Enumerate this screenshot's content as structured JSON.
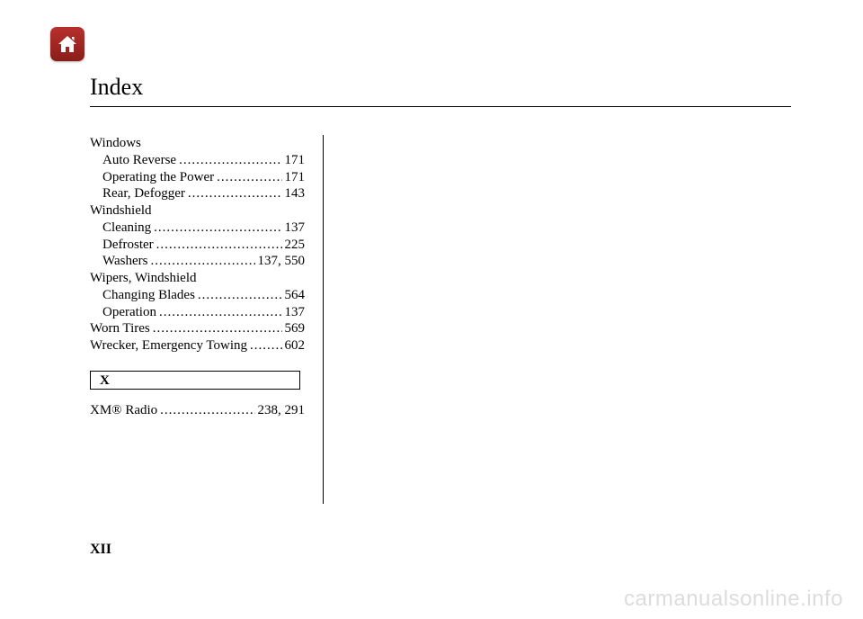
{
  "title": "Index",
  "page_number": "XII",
  "watermark": "carmanualsonline.info",
  "colors": {
    "text": "#000000",
    "rule": "#000000",
    "watermark": "#dcdcdc",
    "home_icon_bg_top": "#b8302c",
    "home_icon_bg_bottom": "#8a1e1a",
    "home_icon_glyph": "#ffffff"
  },
  "entries": [
    {
      "label": "Windows",
      "page": "",
      "indent": 0,
      "dots": false
    },
    {
      "label": "Auto Reverse",
      "page": "171",
      "indent": 1,
      "dots": true
    },
    {
      "label": "Operating the Power",
      "page": "171",
      "indent": 1,
      "dots": true
    },
    {
      "label": "Rear, Defogger",
      "page": "143",
      "indent": 1,
      "dots": true
    },
    {
      "label": "Windshield",
      "page": "",
      "indent": 0,
      "dots": false
    },
    {
      "label": "Cleaning",
      "page": "137",
      "indent": 1,
      "dots": true
    },
    {
      "label": "Defroster",
      "page": "225",
      "indent": 1,
      "dots": true
    },
    {
      "label": "Washers",
      "page": "137, 550",
      "indent": 1,
      "dots": true
    },
    {
      "label": "Wipers, Windshield",
      "page": "",
      "indent": 0,
      "dots": false
    },
    {
      "label": "Changing Blades",
      "page": "564",
      "indent": 1,
      "dots": true
    },
    {
      "label": "Operation",
      "page": "137",
      "indent": 1,
      "dots": true
    },
    {
      "label": "Worn Tires",
      "page": "569",
      "indent": 0,
      "dots": true
    },
    {
      "label": "Wrecker, Emergency Towing",
      "page": "602",
      "indent": 0,
      "dots": true
    }
  ],
  "section_letter": "X",
  "section_entries": [
    {
      "label": "XM® Radio",
      "page": "238, 291",
      "indent": 0,
      "dots": true
    }
  ]
}
